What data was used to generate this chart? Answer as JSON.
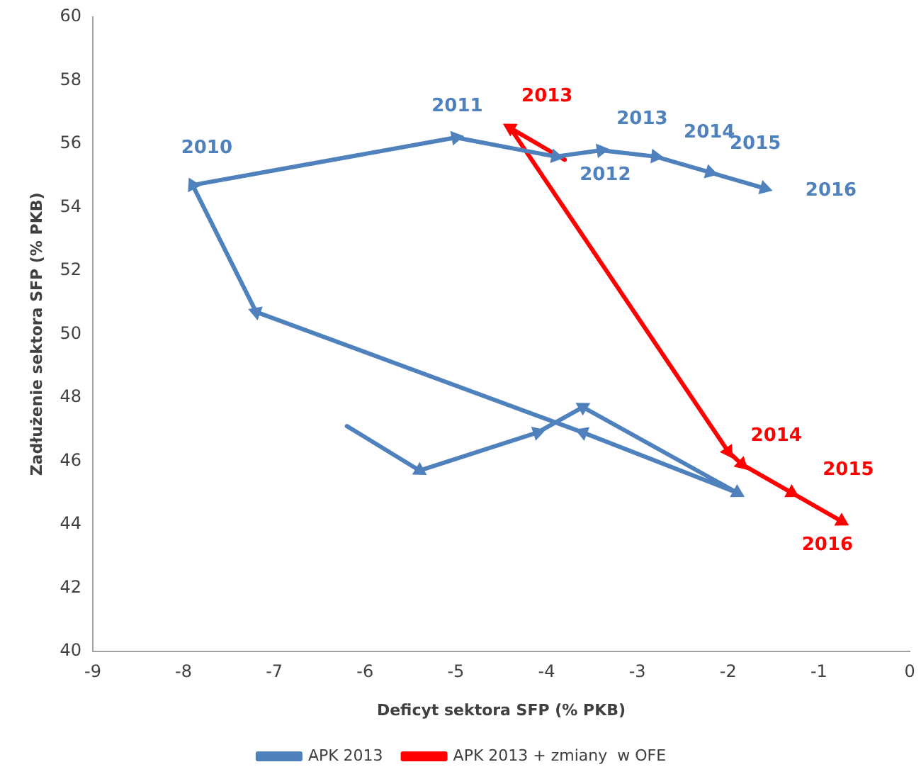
{
  "chart_data": {
    "type": "line",
    "xlabel": "Deficyt sektora SFP (% PKB)",
    "ylabel": "Zadłużenie sektora SFP (% PKB)",
    "xlim": [
      -9,
      0
    ],
    "xticks": [
      -9,
      -8,
      -7,
      -6,
      -5,
      -4,
      -3,
      -2,
      -1,
      0
    ],
    "ylim": [
      40,
      60
    ],
    "yticks": [
      40,
      42,
      44,
      46,
      48,
      50,
      52,
      54,
      56,
      58,
      60
    ],
    "grid": false,
    "legend": "bottom",
    "marker": "triangle",
    "line_style": "solid",
    "series": [
      {
        "name": "APK 2013",
        "color": "#4f81bd",
        "x": [
          -6.2,
          -5.4,
          -4.1,
          -3.6,
          -1.9,
          -3.6,
          -7.2,
          -7.9,
          -5.0,
          -3.9,
          -3.4,
          -2.8,
          -2.2,
          -1.6
        ],
        "values": [
          47.1,
          45.7,
          46.9,
          47.7,
          45.0,
          46.9,
          50.7,
          54.7,
          56.2,
          55.6,
          55.8,
          55.6,
          55.1,
          54.6
        ]
      },
      {
        "name": "APK 2013 + zmiany  w OFE",
        "color": "#ff0000",
        "x": [
          -3.8,
          -4.4,
          -2.0,
          -1.85,
          -1.3,
          -0.75
        ],
        "values": [
          55.5,
          56.5,
          46.3,
          45.9,
          45.0,
          44.1
        ]
      }
    ],
    "annotations": [
      {
        "text": "2010",
        "x": -7.9,
        "y": 54.7
      },
      {
        "text": "2011",
        "x": -5.0,
        "y": 56.2
      },
      {
        "text": "2013",
        "x": -4.4,
        "y": 56.5
      },
      {
        "text": "2013",
        "x": -3.4,
        "y": 55.8
      },
      {
        "text": "2012",
        "x": -3.9,
        "y": 55.6
      },
      {
        "text": "2014",
        "x": -2.8,
        "y": 55.6
      },
      {
        "text": "2015",
        "x": -2.2,
        "y": 55.1
      },
      {
        "text": "2016",
        "x": -1.6,
        "y": 54.6
      },
      {
        "text": "2014",
        "x": -2.0,
        "y": 46.3
      },
      {
        "text": "2015",
        "x": -1.3,
        "y": 45.0
      },
      {
        "text": "2016",
        "x": -0.75,
        "y": 44.1
      }
    ]
  }
}
